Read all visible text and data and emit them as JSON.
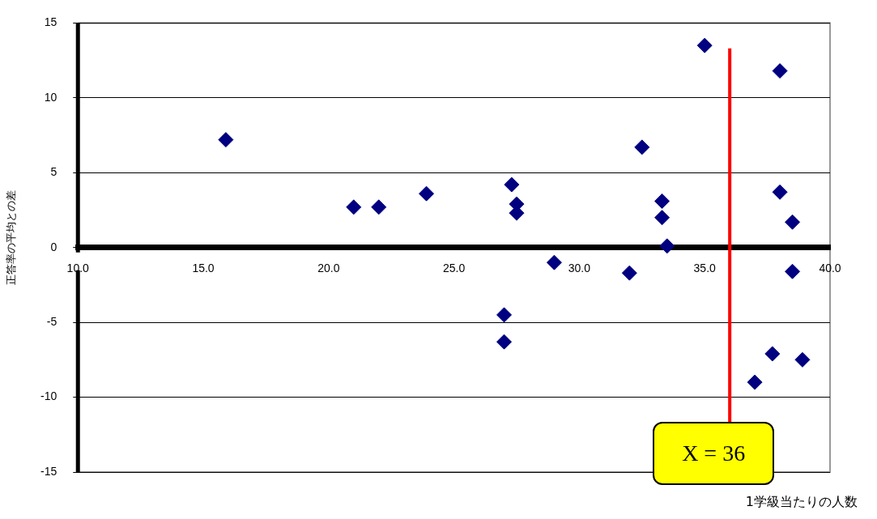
{
  "chart_data": {
    "type": "scatter",
    "xlabel": "1学級当たりの人数",
    "ylabel": "正答率の平均との差",
    "x": [
      15.9,
      21.0,
      22.0,
      23.9,
      27.3,
      27.5,
      27.5,
      29.0,
      27.0,
      27.0,
      32.0,
      32.5,
      33.3,
      33.3,
      33.5,
      35.0,
      38.0,
      38.0,
      38.5,
      38.5,
      37.7,
      37.0,
      38.9
    ],
    "values": [
      7.2,
      2.7,
      2.7,
      3.6,
      4.2,
      2.9,
      2.3,
      -1.0,
      -4.5,
      -6.3,
      -1.7,
      6.7,
      3.1,
      2.0,
      0.1,
      13.5,
      11.8,
      3.7,
      1.7,
      -1.6,
      -7.1,
      -9.0,
      -7.5
    ],
    "color": "#000080",
    "marker": "diamond",
    "xlim": [
      10,
      40
    ],
    "xticks": [
      {
        "value": 10,
        "label": "10.0"
      },
      {
        "value": 15,
        "label": "15.0"
      },
      {
        "value": 20,
        "label": "20.0"
      },
      {
        "value": 25,
        "label": "25.0"
      },
      {
        "value": 30,
        "label": "30.0"
      },
      {
        "value": 35,
        "label": "35.0"
      },
      {
        "value": 40,
        "label": "40.0"
      }
    ],
    "ylim": [
      -15,
      15
    ],
    "yticks": [
      -15,
      -10,
      -5,
      0,
      5,
      10,
      15
    ],
    "grid": "y",
    "legend": false,
    "ref_lines": [
      {
        "axis": "x",
        "value": 36,
        "label": "X = 36",
        "color": "#ff0000"
      }
    ]
  }
}
